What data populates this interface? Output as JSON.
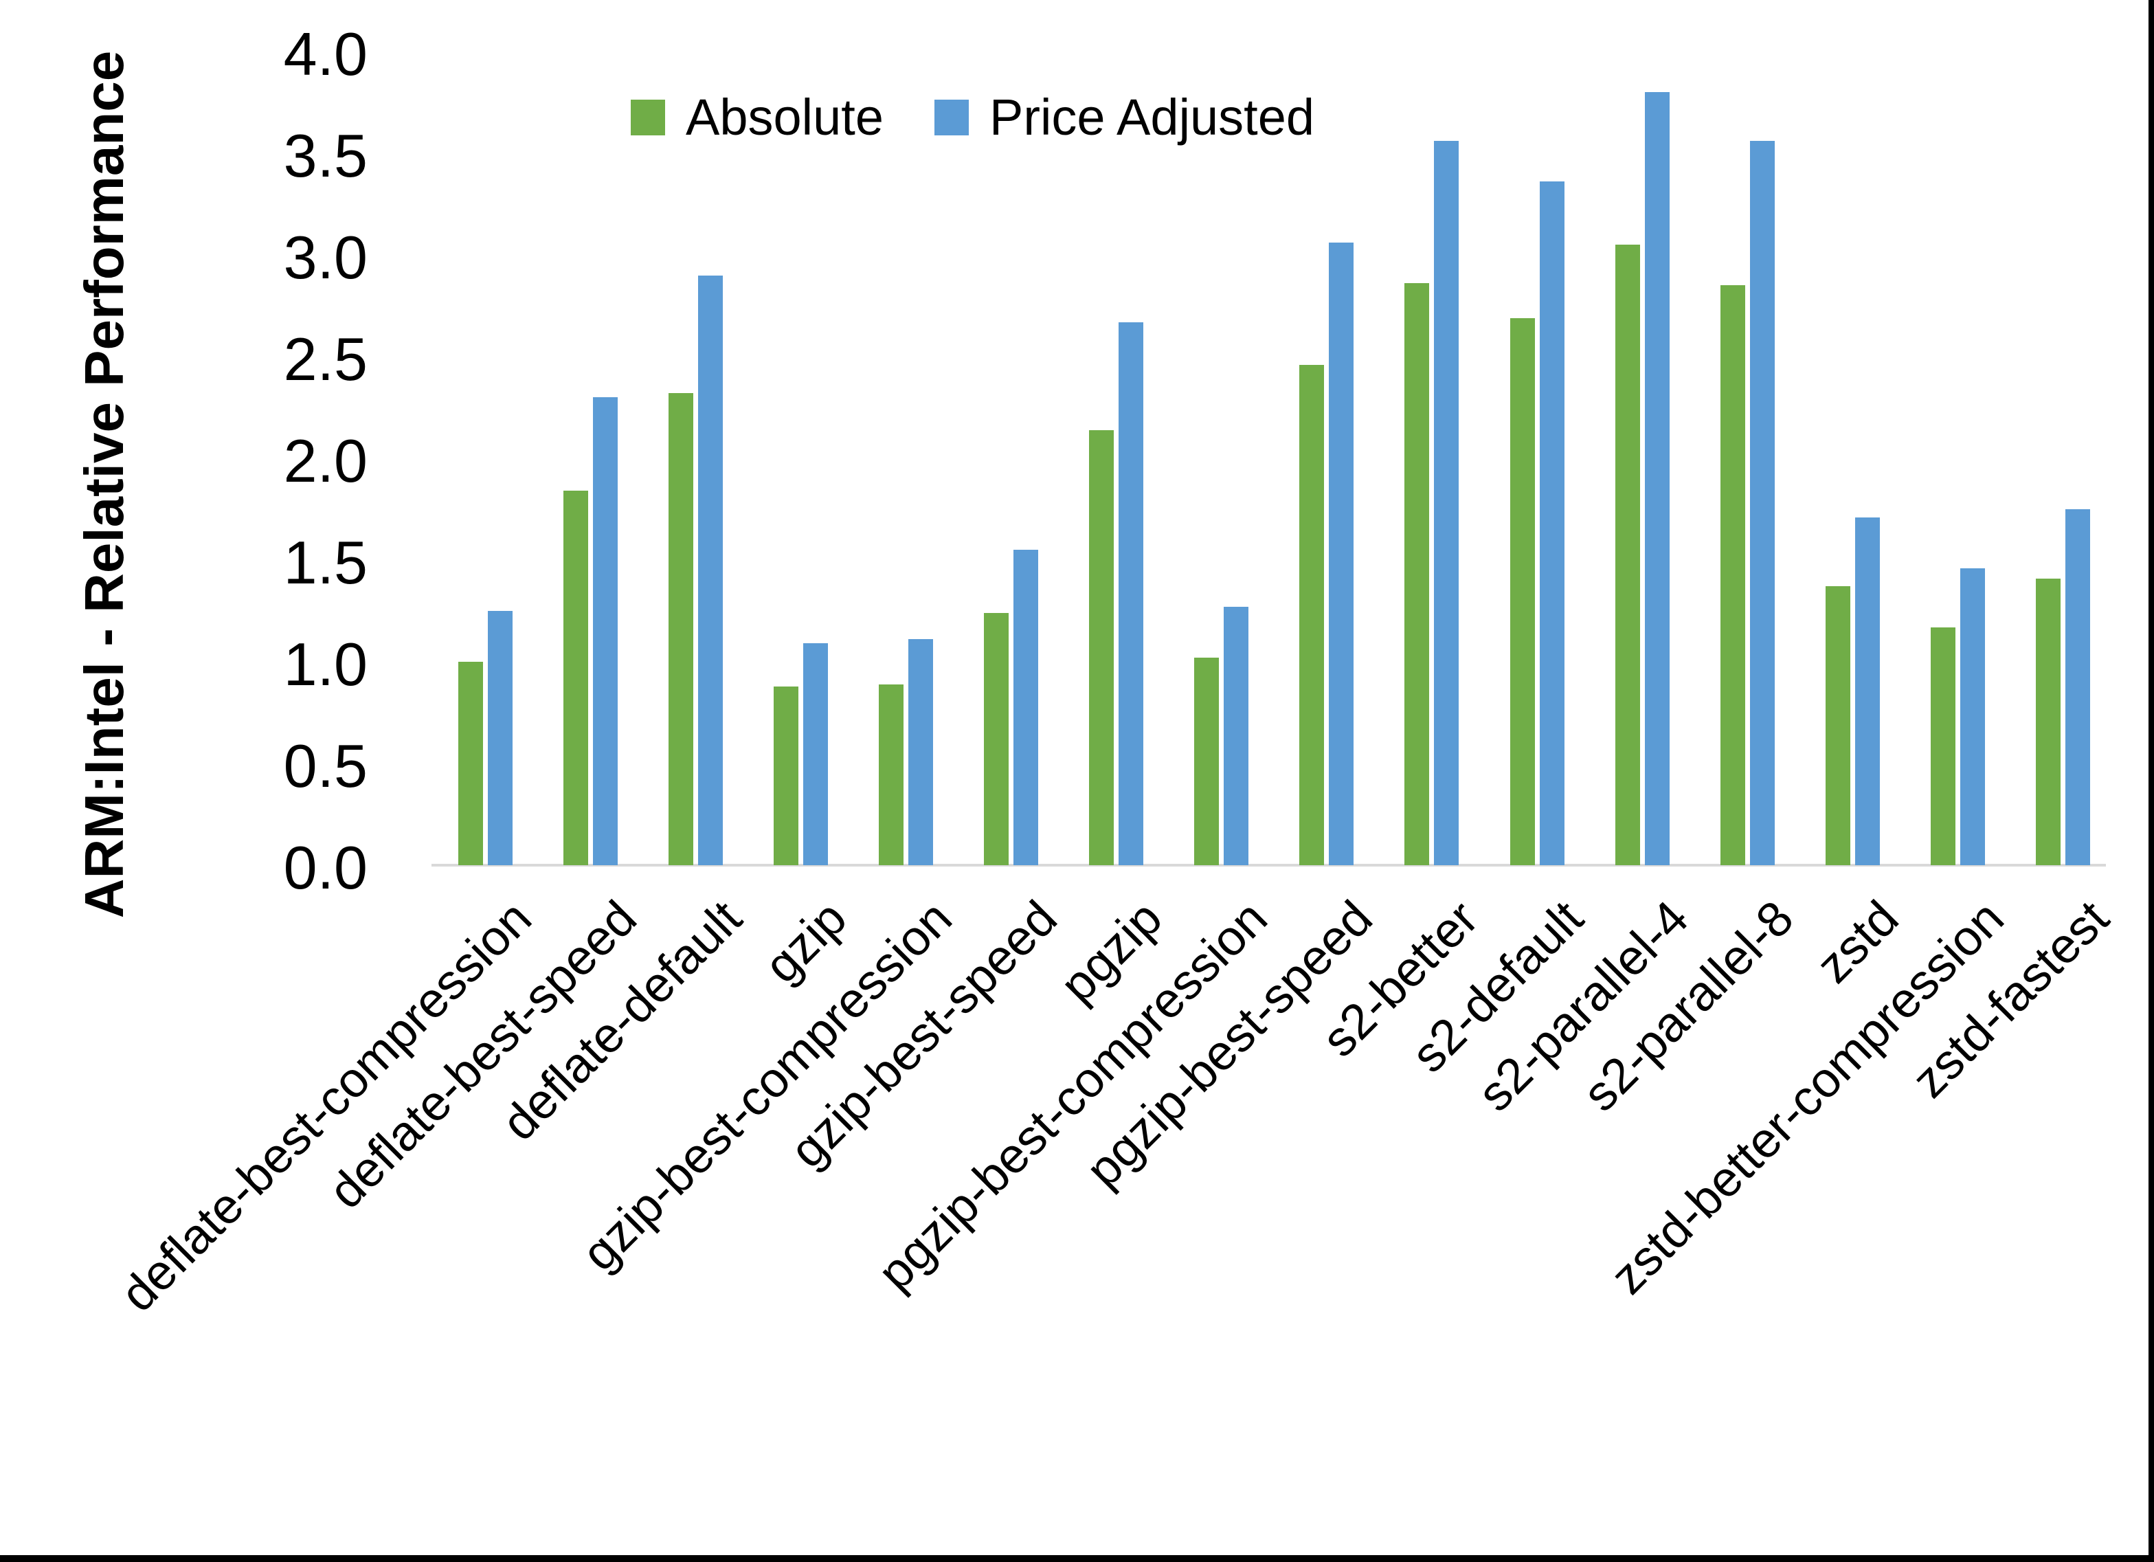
{
  "chart_data": {
    "type": "bar",
    "title": "",
    "ylabel": "ARM:Intel - Relative Performance",
    "xlabel": "",
    "categories": [
      "deflate-best-compression",
      "deflate-best-speed",
      "deflate-default",
      "gzip",
      "gzip-best-compression",
      "gzip-best-speed",
      "pgzip",
      "pgzip-best-compression",
      "pgzip-best-speed",
      "s2-better",
      "s2-default",
      "s2-parallel-4",
      "s2-parallel-8",
      "zstd",
      "zstd-better-compression",
      "zstd-fastest"
    ],
    "series": [
      {
        "name": "Absolute",
        "color": "#70AD47",
        "values": [
          1.0,
          1.84,
          2.32,
          0.88,
          0.89,
          1.24,
          2.14,
          1.02,
          2.46,
          2.86,
          2.69,
          3.05,
          2.85,
          1.37,
          1.17,
          1.41
        ]
      },
      {
        "name": "Price Adjusted",
        "color": "#5B9BD5",
        "values": [
          1.25,
          2.3,
          2.9,
          1.09,
          1.11,
          1.55,
          2.67,
          1.27,
          3.06,
          3.56,
          3.36,
          3.8,
          3.56,
          1.71,
          1.46,
          1.75
        ]
      }
    ],
    "ylim": [
      0.0,
      4.0
    ],
    "ytick_labels": [
      "0.0",
      "0.5",
      "1.0",
      "1.5",
      "2.0",
      "2.5",
      "3.0",
      "3.5",
      "4.0"
    ],
    "grid": false,
    "legend_position": "top-center",
    "axis_line_color": "#D9D9D9",
    "text_color": "#000000"
  }
}
